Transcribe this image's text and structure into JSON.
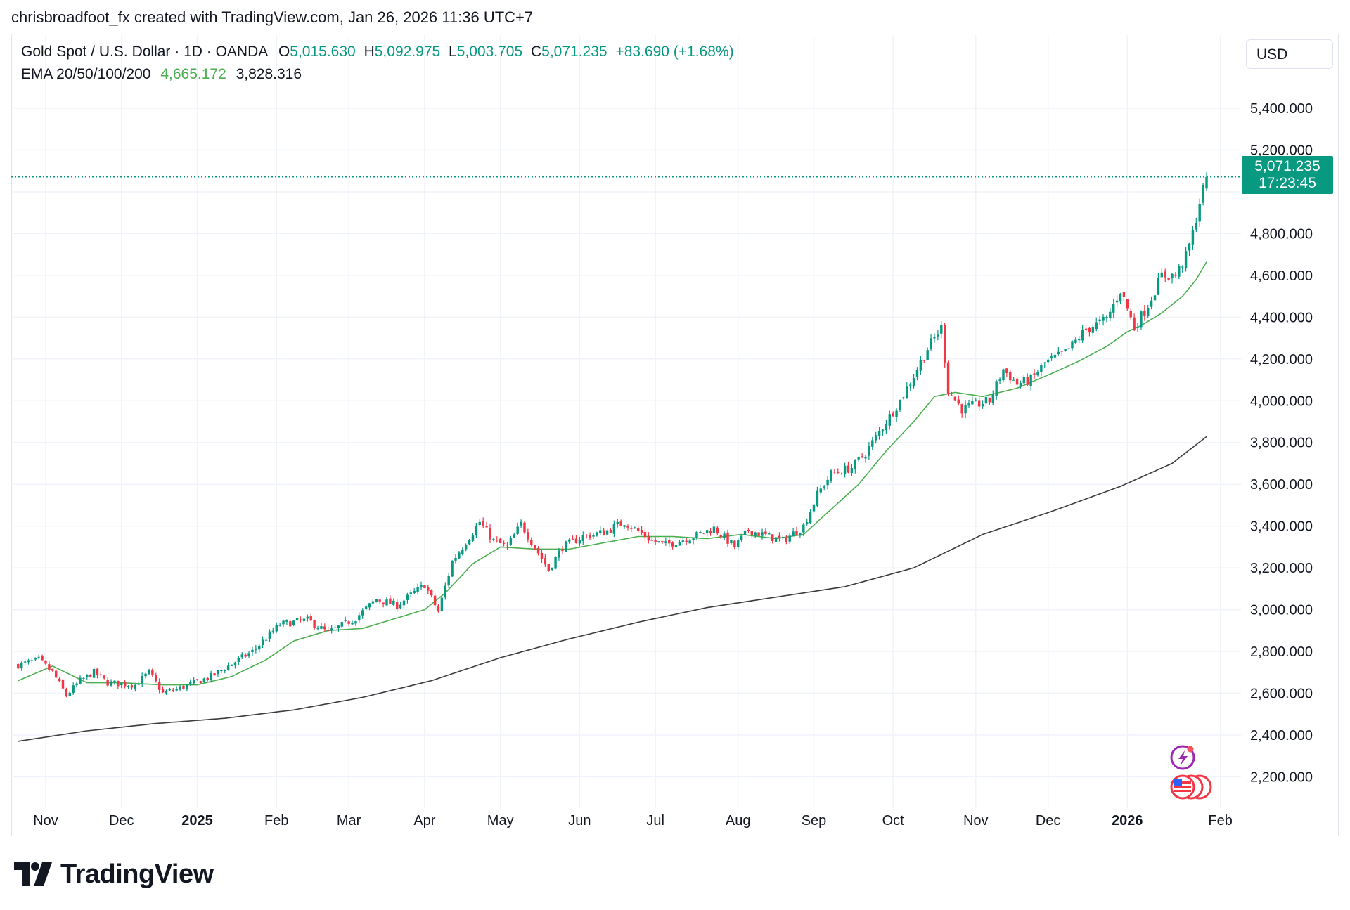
{
  "header": {
    "credit": "chrisbroadfoot_fx created with TradingView.com, Jan 26, 2026 11:36 UTC+7"
  },
  "legend": {
    "symbol": "Gold Spot / U.S. Dollar · 1D · OANDA",
    "open_label": "O",
    "open": "5,015.630",
    "high_label": "H",
    "high": "5,092.975",
    "low_label": "L",
    "low": "5,003.705",
    "close_label": "C",
    "close": "5,071.235",
    "change": "+83.690 (+1.68%)",
    "ema_label": "EMA 20/50/100/200",
    "ema_fast": "4,665.172",
    "ema_slow": "3,828.316"
  },
  "currency": "USD",
  "price_tag": {
    "price": "5,071.235",
    "countdown": "17:23:45"
  },
  "branding": {
    "logo_text": "TradingView"
  },
  "colors": {
    "up": "#089981",
    "down": "#f23645",
    "ema_fast": "#4caf50",
    "ema_slow": "#3c3c3c",
    "grid": "#f0f3fa"
  },
  "chart_data": {
    "type": "candlestick",
    "title": "Gold Spot / U.S. Dollar · 1D · OANDA",
    "ylim": [
      2050,
      5750
    ],
    "y_ticks": [
      2200,
      2400,
      2600,
      2800,
      3000,
      3200,
      3400,
      3600,
      3800,
      4000,
      4200,
      4400,
      4600,
      4800,
      5200,
      5400
    ],
    "y_tick_labels": [
      "2,200.000",
      "2,400.000",
      "2,600.000",
      "2,800.000",
      "3,000.000",
      "3,200.000",
      "3,400.000",
      "3,600.000",
      "3,800.000",
      "4,000.000",
      "4,200.000",
      "4,400.000",
      "4,600.000",
      "4,800.000",
      "5,200.000",
      "5,400.000"
    ],
    "x_ticks": [
      {
        "label": "Nov",
        "day": 8,
        "bold": false
      },
      {
        "label": "Dec",
        "day": 30,
        "bold": false
      },
      {
        "label": "2025",
        "day": 52,
        "bold": true
      },
      {
        "label": "Feb",
        "day": 75,
        "bold": false
      },
      {
        "label": "Mar",
        "day": 96,
        "bold": false
      },
      {
        "label": "Apr",
        "day": 118,
        "bold": false
      },
      {
        "label": "May",
        "day": 140,
        "bold": false
      },
      {
        "label": "Jun",
        "day": 163,
        "bold": false
      },
      {
        "label": "Jul",
        "day": 185,
        "bold": false
      },
      {
        "label": "Aug",
        "day": 209,
        "bold": false
      },
      {
        "label": "Sep",
        "day": 231,
        "bold": false
      },
      {
        "label": "Oct",
        "day": 254,
        "bold": false
      },
      {
        "label": "Nov",
        "day": 278,
        "bold": false
      },
      {
        "label": "Dec",
        "day": 299,
        "bold": false
      },
      {
        "label": "2026",
        "day": 322,
        "bold": true
      },
      {
        "label": "Feb",
        "day": 349,
        "bold": false
      }
    ],
    "x_range": [
      -2,
      355
    ],
    "price_anchors": [
      [
        0,
        2735
      ],
      [
        6,
        2760
      ],
      [
        10,
        2700
      ],
      [
        14,
        2590
      ],
      [
        18,
        2660
      ],
      [
        22,
        2700
      ],
      [
        26,
        2650
      ],
      [
        34,
        2640
      ],
      [
        38,
        2700
      ],
      [
        42,
        2600
      ],
      [
        48,
        2630
      ],
      [
        56,
        2680
      ],
      [
        62,
        2740
      ],
      [
        68,
        2800
      ],
      [
        76,
        2930
      ],
      [
        84,
        2950
      ],
      [
        90,
        2890
      ],
      [
        98,
        2960
      ],
      [
        104,
        3050
      ],
      [
        110,
        3020
      ],
      [
        118,
        3120
      ],
      [
        122,
        2990
      ],
      [
        126,
        3230
      ],
      [
        134,
        3420
      ],
      [
        138,
        3330
      ],
      [
        142,
        3300
      ],
      [
        146,
        3410
      ],
      [
        150,
        3300
      ],
      [
        154,
        3190
      ],
      [
        158,
        3300
      ],
      [
        164,
        3350
      ],
      [
        170,
        3370
      ],
      [
        176,
        3420
      ],
      [
        184,
        3330
      ],
      [
        188,
        3310
      ],
      [
        196,
        3350
      ],
      [
        202,
        3390
      ],
      [
        208,
        3300
      ],
      [
        212,
        3380
      ],
      [
        222,
        3330
      ],
      [
        228,
        3400
      ],
      [
        232,
        3550
      ],
      [
        236,
        3650
      ],
      [
        242,
        3680
      ],
      [
        246,
        3750
      ],
      [
        252,
        3900
      ],
      [
        256,
        4000
      ],
      [
        260,
        4120
      ],
      [
        264,
        4250
      ],
      [
        268,
        4350
      ],
      [
        270,
        4050
      ],
      [
        274,
        3960
      ],
      [
        278,
        3980
      ],
      [
        282,
        4000
      ],
      [
        286,
        4150
      ],
      [
        290,
        4080
      ],
      [
        294,
        4100
      ],
      [
        298,
        4180
      ],
      [
        304,
        4230
      ],
      [
        310,
        4340
      ],
      [
        316,
        4390
      ],
      [
        320,
        4530
      ],
      [
        324,
        4350
      ],
      [
        328,
        4460
      ],
      [
        332,
        4600
      ],
      [
        336,
        4600
      ],
      [
        339,
        4690
      ],
      [
        341,
        4800
      ],
      [
        343,
        4950
      ],
      [
        345,
        5071
      ]
    ],
    "candle_count": 346,
    "ema_fast_anchors": [
      [
        0,
        2660
      ],
      [
        10,
        2730
      ],
      [
        20,
        2650
      ],
      [
        30,
        2650
      ],
      [
        42,
        2640
      ],
      [
        52,
        2640
      ],
      [
        62,
        2680
      ],
      [
        72,
        2760
      ],
      [
        80,
        2850
      ],
      [
        90,
        2900
      ],
      [
        100,
        2910
      ],
      [
        110,
        2960
      ],
      [
        118,
        3000
      ],
      [
        124,
        3080
      ],
      [
        132,
        3220
      ],
      [
        140,
        3300
      ],
      [
        150,
        3290
      ],
      [
        160,
        3290
      ],
      [
        170,
        3320
      ],
      [
        180,
        3350
      ],
      [
        190,
        3350
      ],
      [
        200,
        3340
      ],
      [
        210,
        3360
      ],
      [
        220,
        3340
      ],
      [
        228,
        3360
      ],
      [
        236,
        3480
      ],
      [
        244,
        3600
      ],
      [
        252,
        3760
      ],
      [
        260,
        3900
      ],
      [
        266,
        4020
      ],
      [
        272,
        4040
      ],
      [
        280,
        4020
      ],
      [
        290,
        4060
      ],
      [
        300,
        4130
      ],
      [
        308,
        4190
      ],
      [
        316,
        4260
      ],
      [
        322,
        4330
      ],
      [
        326,
        4360
      ],
      [
        332,
        4420
      ],
      [
        338,
        4500
      ],
      [
        342,
        4580
      ],
      [
        345,
        4665
      ]
    ],
    "ema_slow_anchors": [
      [
        0,
        2370
      ],
      [
        20,
        2420
      ],
      [
        40,
        2455
      ],
      [
        60,
        2480
      ],
      [
        80,
        2520
      ],
      [
        100,
        2580
      ],
      [
        120,
        2660
      ],
      [
        140,
        2770
      ],
      [
        160,
        2860
      ],
      [
        180,
        2940
      ],
      [
        200,
        3010
      ],
      [
        220,
        3060
      ],
      [
        240,
        3110
      ],
      [
        260,
        3200
      ],
      [
        280,
        3360
      ],
      [
        300,
        3470
      ],
      [
        320,
        3590
      ],
      [
        335,
        3700
      ],
      [
        345,
        3828
      ]
    ]
  }
}
